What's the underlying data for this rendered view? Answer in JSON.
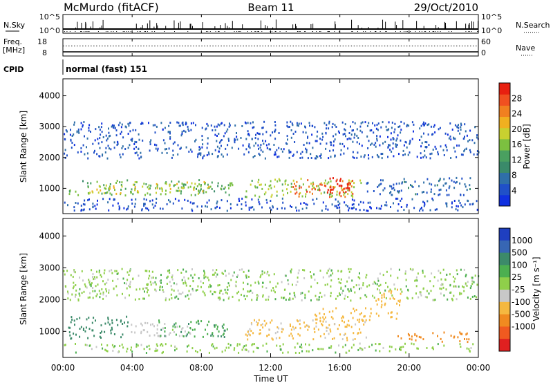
{
  "header": {
    "station": "McMurdo (fitACF)",
    "beam": "Beam 11",
    "date": "29/Oct/2010"
  },
  "ops_panels": {
    "nsky_label": "N.Sky",
    "nsky_ticks": [
      "10^5",
      "10^0"
    ],
    "nsearch_label": "N.Search",
    "nsearch_ticks": [
      "10^5",
      "10^0"
    ],
    "freq_label": "Freq.",
    "freq_unit": "[MHz]",
    "freq_ticks": [
      "18",
      "8"
    ],
    "nave_label": "Nave",
    "nave_ticks": [
      "60",
      "0"
    ],
    "cpid_label": "CPID",
    "cpid_value": "normal (fast) 151"
  },
  "chart_data": [
    {
      "type": "heatmap",
      "name": "power",
      "ylabel": "Slant Range [km]",
      "xlabel": "",
      "y_ticks": [
        "1000",
        "2000",
        "3000",
        "4000"
      ],
      "ylim": [
        180,
        4550
      ],
      "xlim_hours": [
        0,
        24
      ],
      "colorbar": {
        "label": "Power [dB]",
        "ticks": [
          "4",
          "8",
          "12",
          "16",
          "20",
          "24",
          "28"
        ],
        "range": [
          0,
          32
        ],
        "colors": [
          "#1030e0",
          "#2050c8",
          "#2f6fa8",
          "#3a8a6a",
          "#4aa060",
          "#7cc040",
          "#c8d030",
          "#f0b020",
          "#f08020",
          "#f05020",
          "#e82010"
        ]
      },
      "bands": [
        {
          "t0": 0.3,
          "t1": 9.8,
          "r0": 800,
          "r1": 1300,
          "v": 14
        },
        {
          "t0": 1.5,
          "t1": 3.5,
          "r0": 850,
          "r1": 1150,
          "v": 22
        },
        {
          "t0": 4.0,
          "t1": 8.5,
          "r0": 850,
          "r1": 1250,
          "v": 19
        },
        {
          "t0": 10.5,
          "t1": 17.2,
          "r0": 750,
          "r1": 1350,
          "v": 17
        },
        {
          "t0": 13.2,
          "t1": 16.8,
          "r0": 750,
          "r1": 1300,
          "v": 27
        },
        {
          "t0": 15.3,
          "t1": 16.6,
          "r0": 750,
          "r1": 1400,
          "v": 31
        },
        {
          "t0": 0.0,
          "t1": 24.0,
          "r0": 2000,
          "r1": 3200,
          "v": 5
        },
        {
          "t0": 0.0,
          "t1": 24.0,
          "r0": 300,
          "r1": 700,
          "v": 4
        },
        {
          "t0": 17.5,
          "t1": 23.5,
          "r0": 800,
          "r1": 1400,
          "v": 6
        }
      ]
    },
    {
      "type": "heatmap",
      "name": "velocity",
      "ylabel": "Slant Range [km]",
      "xlabel": "Time UT",
      "y_ticks": [
        "1000",
        "2000",
        "3000",
        "4000"
      ],
      "x_ticks": [
        "00:00",
        "04:00",
        "08:00",
        "12:00",
        "16:00",
        "20:00",
        "00:00"
      ],
      "ylim": [
        180,
        4550
      ],
      "xlim_hours": [
        0,
        24
      ],
      "colorbar": {
        "label": "Velocity [m s⁻¹]",
        "ticks": [
          "1000",
          "500",
          "100",
          "25",
          "-25",
          "-100",
          "-500",
          "-1000"
        ],
        "colors": [
          "#1f3fc0",
          "#3766b4",
          "#3c8a6a",
          "#4caf50",
          "#8fcf4a",
          "#c8c8c8",
          "#f5b840",
          "#f08a20",
          "#f05a20",
          "#e02020"
        ]
      },
      "bands": [
        {
          "t0": 0.3,
          "t1": 3.8,
          "r0": 800,
          "r1": 1500,
          "v": 300
        },
        {
          "t0": 3.8,
          "t1": 7.5,
          "r0": 850,
          "r1": 1300,
          "v": -60
        },
        {
          "t0": 5.5,
          "t1": 9.5,
          "r0": 850,
          "r1": 1400,
          "v": 80
        },
        {
          "t0": 10.5,
          "t1": 17.5,
          "r0": 750,
          "r1": 1400,
          "v": -120
        },
        {
          "t0": 14.5,
          "t1": 17.8,
          "r0": 1200,
          "r1": 1800,
          "v": -150
        },
        {
          "t0": 18.0,
          "t1": 19.5,
          "r0": 1400,
          "r1": 2400,
          "v": -200
        },
        {
          "t0": 0.0,
          "t1": 24.0,
          "r0": 2000,
          "r1": 3000,
          "v": 0
        },
        {
          "t0": 0.0,
          "t1": 24.0,
          "r0": 350,
          "r1": 650,
          "v": 0
        },
        {
          "t0": 19.0,
          "t1": 23.5,
          "r0": 700,
          "r1": 1000,
          "v": -600
        }
      ]
    }
  ]
}
